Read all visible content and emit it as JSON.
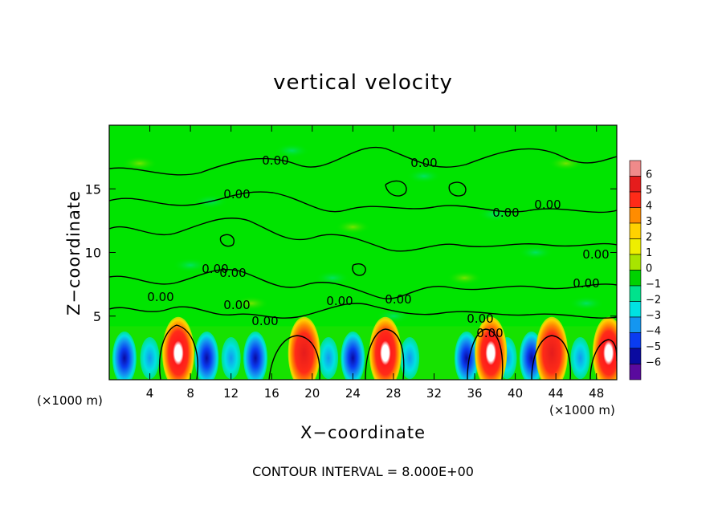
{
  "chart_data": {
    "type": "heatmap",
    "title": "vertical velocity",
    "xlabel": "X−coordinate",
    "ylabel": "Z−coordinate",
    "x_unit_label": "(×1000 m)",
    "y_unit_label": "(×1000 m)",
    "x_ticks": [
      4,
      8,
      12,
      16,
      20,
      24,
      28,
      32,
      36,
      40,
      44,
      48
    ],
    "y_ticks": [
      5,
      10,
      15
    ],
    "xlim": [
      0,
      50
    ],
    "ylim": [
      0,
      20
    ],
    "colorbar": {
      "ticks": [
        "6",
        "5",
        "4",
        "3",
        "2",
        "1",
        "0",
        "−1",
        "−2",
        "−3",
        "−4",
        "−5",
        "−6"
      ],
      "colors": [
        "#f08a8a",
        "#e51c1c",
        "#ff2b18",
        "#ff8c00",
        "#ffd200",
        "#eeee00",
        "#a8e400",
        "#00d200",
        "#00e28c",
        "#00e2e2",
        "#1496f0",
        "#0a3cf0",
        "#0a0aa0",
        "#5a0a9e"
      ]
    },
    "contour_labels": [
      "0.00",
      "0.00",
      "0.00",
      "0.00",
      "0.00",
      "0.00",
      "0.00",
      "0.00",
      "0.00",
      "0.00",
      "0.00",
      "0.00",
      "0.00",
      "0.00",
      "0.00",
      "0.00"
    ],
    "updraft_cores_x": [
      6.8,
      19.2,
      27.2,
      37.6,
      43.6,
      49.2
    ],
    "downdraft_cores_x": [
      1.5,
      4.0,
      9.6,
      12.0,
      14.4,
      21.6,
      24.0,
      29.6,
      35.2,
      39.2,
      41.6,
      46.4
    ],
    "interval_label": "CONTOUR INTERVAL = 8.000E+00",
    "background_color": "#00e400"
  }
}
